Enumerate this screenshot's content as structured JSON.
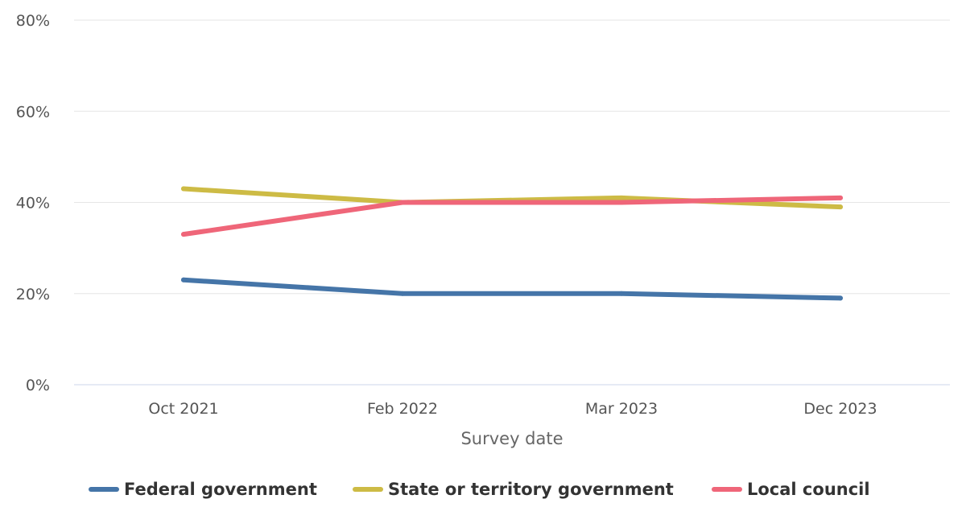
{
  "chart_data": {
    "type": "line",
    "title": "",
    "xlabel": "Survey date",
    "ylabel": "",
    "categories": [
      "Oct 2021",
      "Feb 2022",
      "Mar 2023",
      "Dec 2023"
    ],
    "ylim": [
      0,
      80
    ],
    "yticks": [
      0,
      20,
      40,
      60,
      80
    ],
    "ytick_labels": [
      "0%",
      "20%",
      "40%",
      "60%",
      "80%"
    ],
    "grid": true,
    "legend_position": "bottom",
    "series": [
      {
        "name": "Federal government",
        "color": "#4575a8",
        "values": [
          23,
          20,
          20,
          19
        ]
      },
      {
        "name": "State or territory government",
        "color": "#cdbb45",
        "values": [
          43,
          40,
          41,
          39
        ]
      },
      {
        "name": "Local council",
        "color": "#ef6679",
        "values": [
          33,
          40,
          40,
          41
        ]
      }
    ]
  }
}
